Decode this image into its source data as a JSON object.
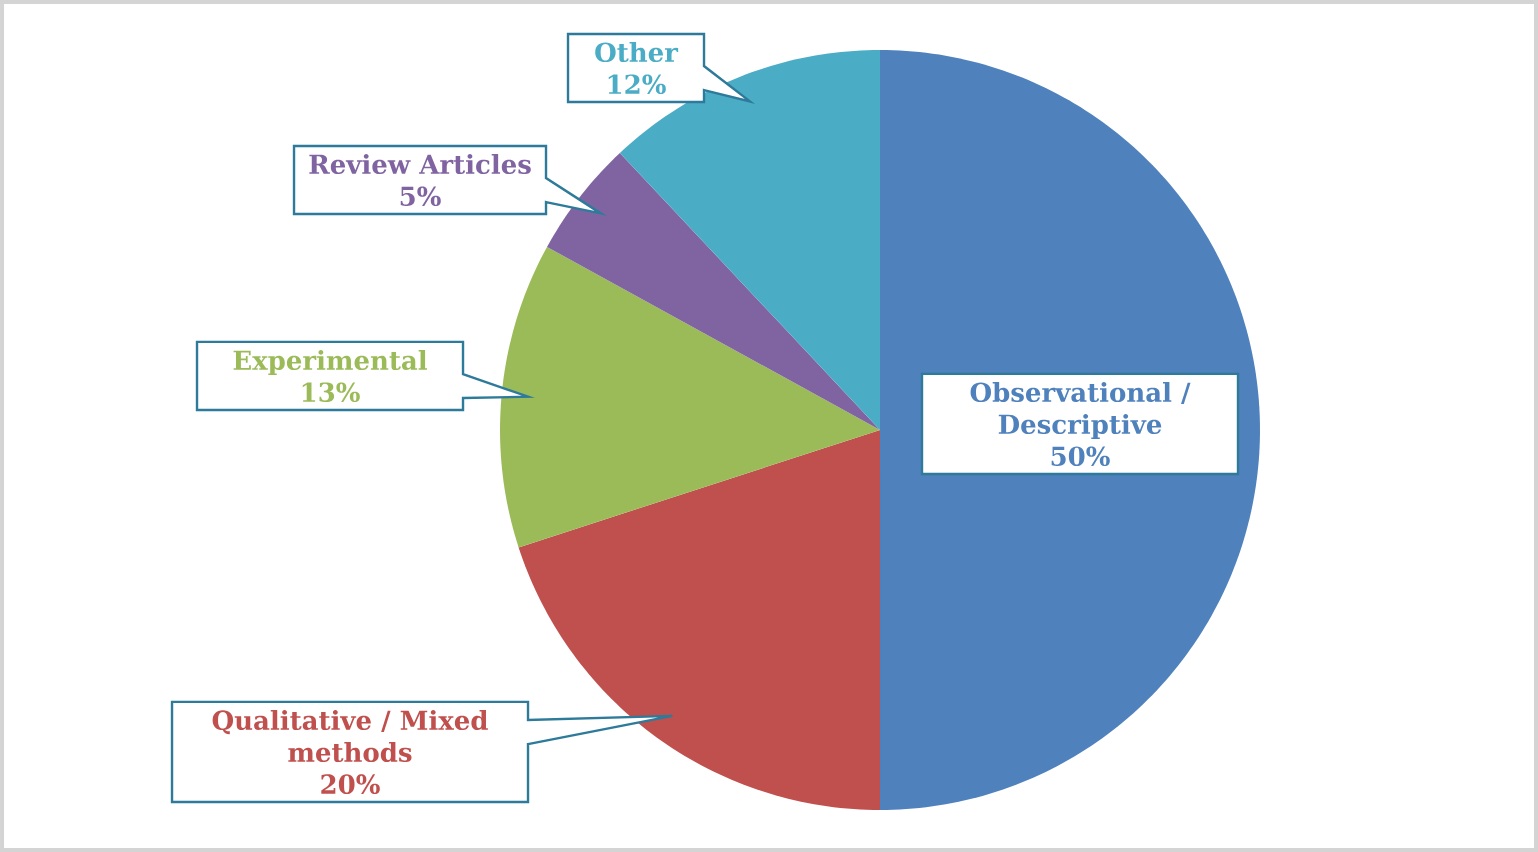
{
  "chart_data": {
    "type": "pie",
    "categories": [
      "Observational / Descriptive",
      "Qualitative / Mixed methods",
      "Experimental",
      "Review Articles",
      "Other"
    ],
    "values": [
      50,
      20,
      13,
      5,
      12
    ],
    "colors": [
      "#4f81bd",
      "#c0504d",
      "#9bbb59",
      "#8064a2",
      "#4bacc6"
    ],
    "value_labels": [
      "50%",
      "20%",
      "13%",
      "5%",
      "12%"
    ]
  }
}
